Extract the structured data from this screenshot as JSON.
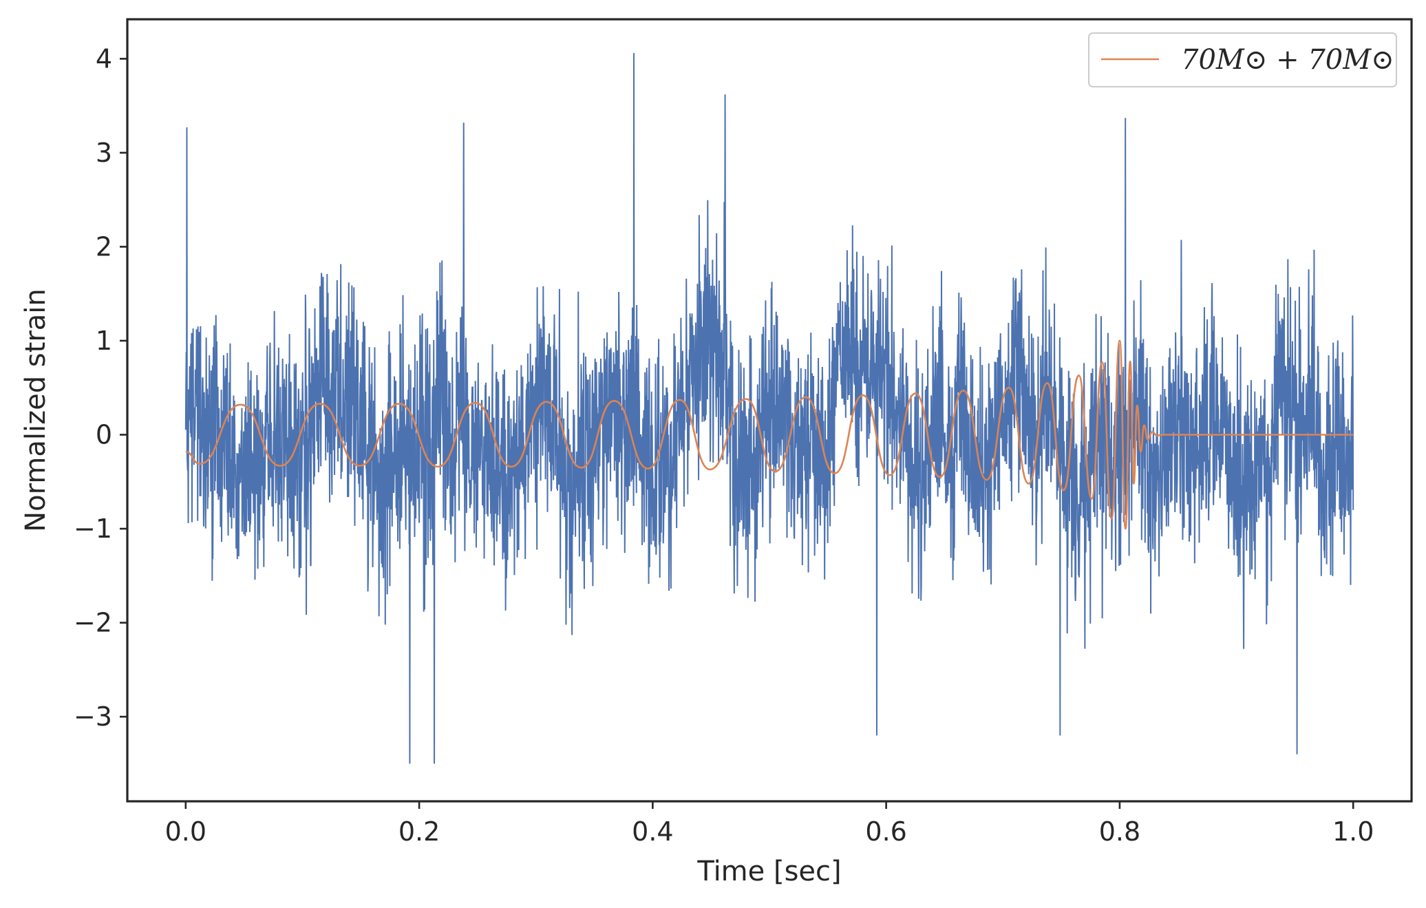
{
  "chart_data": {
    "type": "line",
    "title": "",
    "xlabel": "Time [sec]",
    "ylabel": "Normalized strain",
    "xlim": [
      -0.05,
      1.05
    ],
    "ylim": [
      -3.9,
      4.42
    ],
    "xticks": [
      0.0,
      0.2,
      0.4,
      0.6,
      0.8,
      1.0
    ],
    "xtick_labels": [
      "0.0",
      "0.2",
      "0.4",
      "0.6",
      "0.8",
      "1.0"
    ],
    "yticks": [
      -3,
      -2,
      -1,
      0,
      1,
      2,
      3,
      4
    ],
    "ytick_labels": [
      "−3",
      "−2",
      "−1",
      "0",
      "1",
      "2",
      "3",
      "4"
    ],
    "grid": false,
    "legend_position": "top-right",
    "series": [
      {
        "role": "noisy-strain",
        "color": "#4c72b0",
        "x_range": [
          0.0,
          1.0
        ],
        "typical_range": [
          -1.6,
          1.6
        ],
        "peaks": [
          {
            "x": 0.001,
            "y": 3.27
          },
          {
            "x": 0.192,
            "y": -3.5
          },
          {
            "x": 0.213,
            "y": -3.5
          },
          {
            "x": 0.238,
            "y": 3.32
          },
          {
            "x": 0.384,
            "y": 4.06
          },
          {
            "x": 0.462,
            "y": 3.62
          },
          {
            "x": 0.592,
            "y": -3.2
          },
          {
            "x": 0.749,
            "y": -3.2
          },
          {
            "x": 0.805,
            "y": 3.37
          },
          {
            "x": 0.952,
            "y": -3.4
          }
        ]
      },
      {
        "role": "template-waveform",
        "name": "70M⊙ + 70M⊙",
        "color": "#dd8452",
        "merger_time": 0.8,
        "peak_amplitude": 1.0,
        "initial_amplitude": 0.31,
        "points": [
          [
            0.0,
            -0.18
          ],
          [
            0.012,
            -0.31
          ],
          [
            0.047,
            0.32
          ],
          [
            0.081,
            -0.33
          ],
          [
            0.115,
            0.33
          ],
          [
            0.149,
            -0.33
          ],
          [
            0.183,
            0.33
          ],
          [
            0.216,
            -0.34
          ],
          [
            0.248,
            0.34
          ],
          [
            0.279,
            -0.34
          ],
          [
            0.309,
            0.35
          ],
          [
            0.339,
            -0.35
          ],
          [
            0.367,
            0.36
          ],
          [
            0.396,
            -0.36
          ],
          [
            0.423,
            0.37
          ],
          [
            0.449,
            -0.37
          ],
          [
            0.48,
            0.38
          ],
          [
            0.505,
            -0.39
          ],
          [
            0.531,
            0.4
          ],
          [
            0.556,
            -0.41
          ],
          [
            0.58,
            0.42
          ],
          [
            0.603,
            -0.43
          ],
          [
            0.625,
            0.44
          ],
          [
            0.646,
            -0.45
          ],
          [
            0.666,
            0.47
          ],
          [
            0.686,
            -0.48
          ],
          [
            0.705,
            0.5
          ],
          [
            0.722,
            -0.52
          ],
          [
            0.738,
            0.55
          ],
          [
            0.752,
            -0.59
          ],
          [
            0.765,
            0.63
          ],
          [
            0.776,
            -0.68
          ],
          [
            0.785,
            0.77
          ],
          [
            0.793,
            -0.89
          ],
          [
            0.8,
            1.0
          ],
          [
            0.805,
            -1.0
          ],
          [
            0.809,
            0.78
          ],
          [
            0.812,
            -0.52
          ],
          [
            0.815,
            0.31
          ],
          [
            0.818,
            -0.18
          ],
          [
            0.821,
            0.1
          ],
          [
            0.824,
            -0.05
          ],
          [
            0.828,
            0.03
          ],
          [
            0.832,
            -0.01
          ],
          [
            0.836,
            0.0
          ],
          [
            0.85,
            0.0
          ],
          [
            1.0,
            0.0
          ]
        ]
      }
    ]
  }
}
